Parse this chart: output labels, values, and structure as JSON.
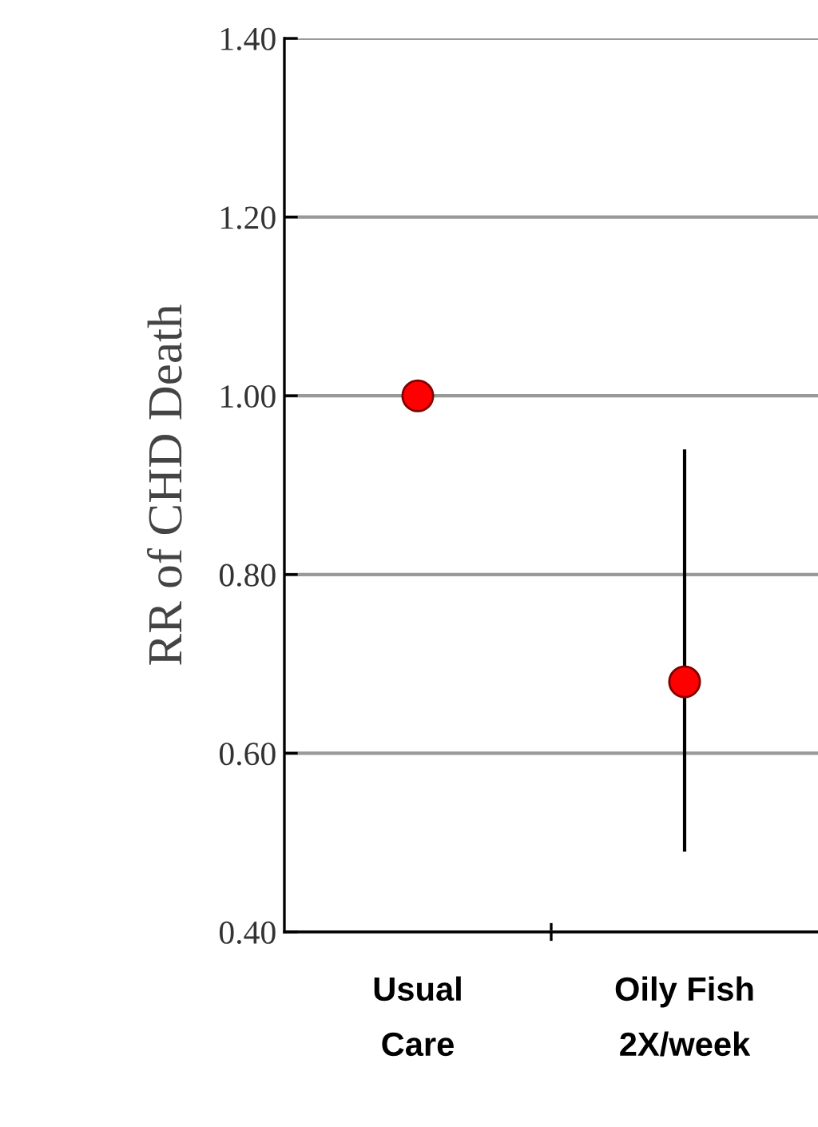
{
  "chart_data": {
    "type": "scatter",
    "ylabel": "RR of CHD Death",
    "categories": [
      "Usual\nCare",
      "Oily Fish\n2X/week"
    ],
    "series": [
      {
        "color": "#ff0000",
        "values": [
          1.0,
          0.68
        ],
        "errors": [
          null,
          [
            0.49,
            0.94
          ]
        ]
      }
    ],
    "ylim": [
      0.4,
      1.4
    ],
    "yticks": [
      {
        "value": 0.4,
        "label": "0.40"
      },
      {
        "value": 0.6,
        "label": "0.60"
      },
      {
        "value": 0.8,
        "label": "0.80"
      },
      {
        "value": 1.0,
        "label": "1.00"
      },
      {
        "value": 1.2,
        "label": "1.20"
      },
      {
        "value": 1.4,
        "label": "1.40"
      }
    ],
    "grid": "y",
    "marker": "circle"
  }
}
